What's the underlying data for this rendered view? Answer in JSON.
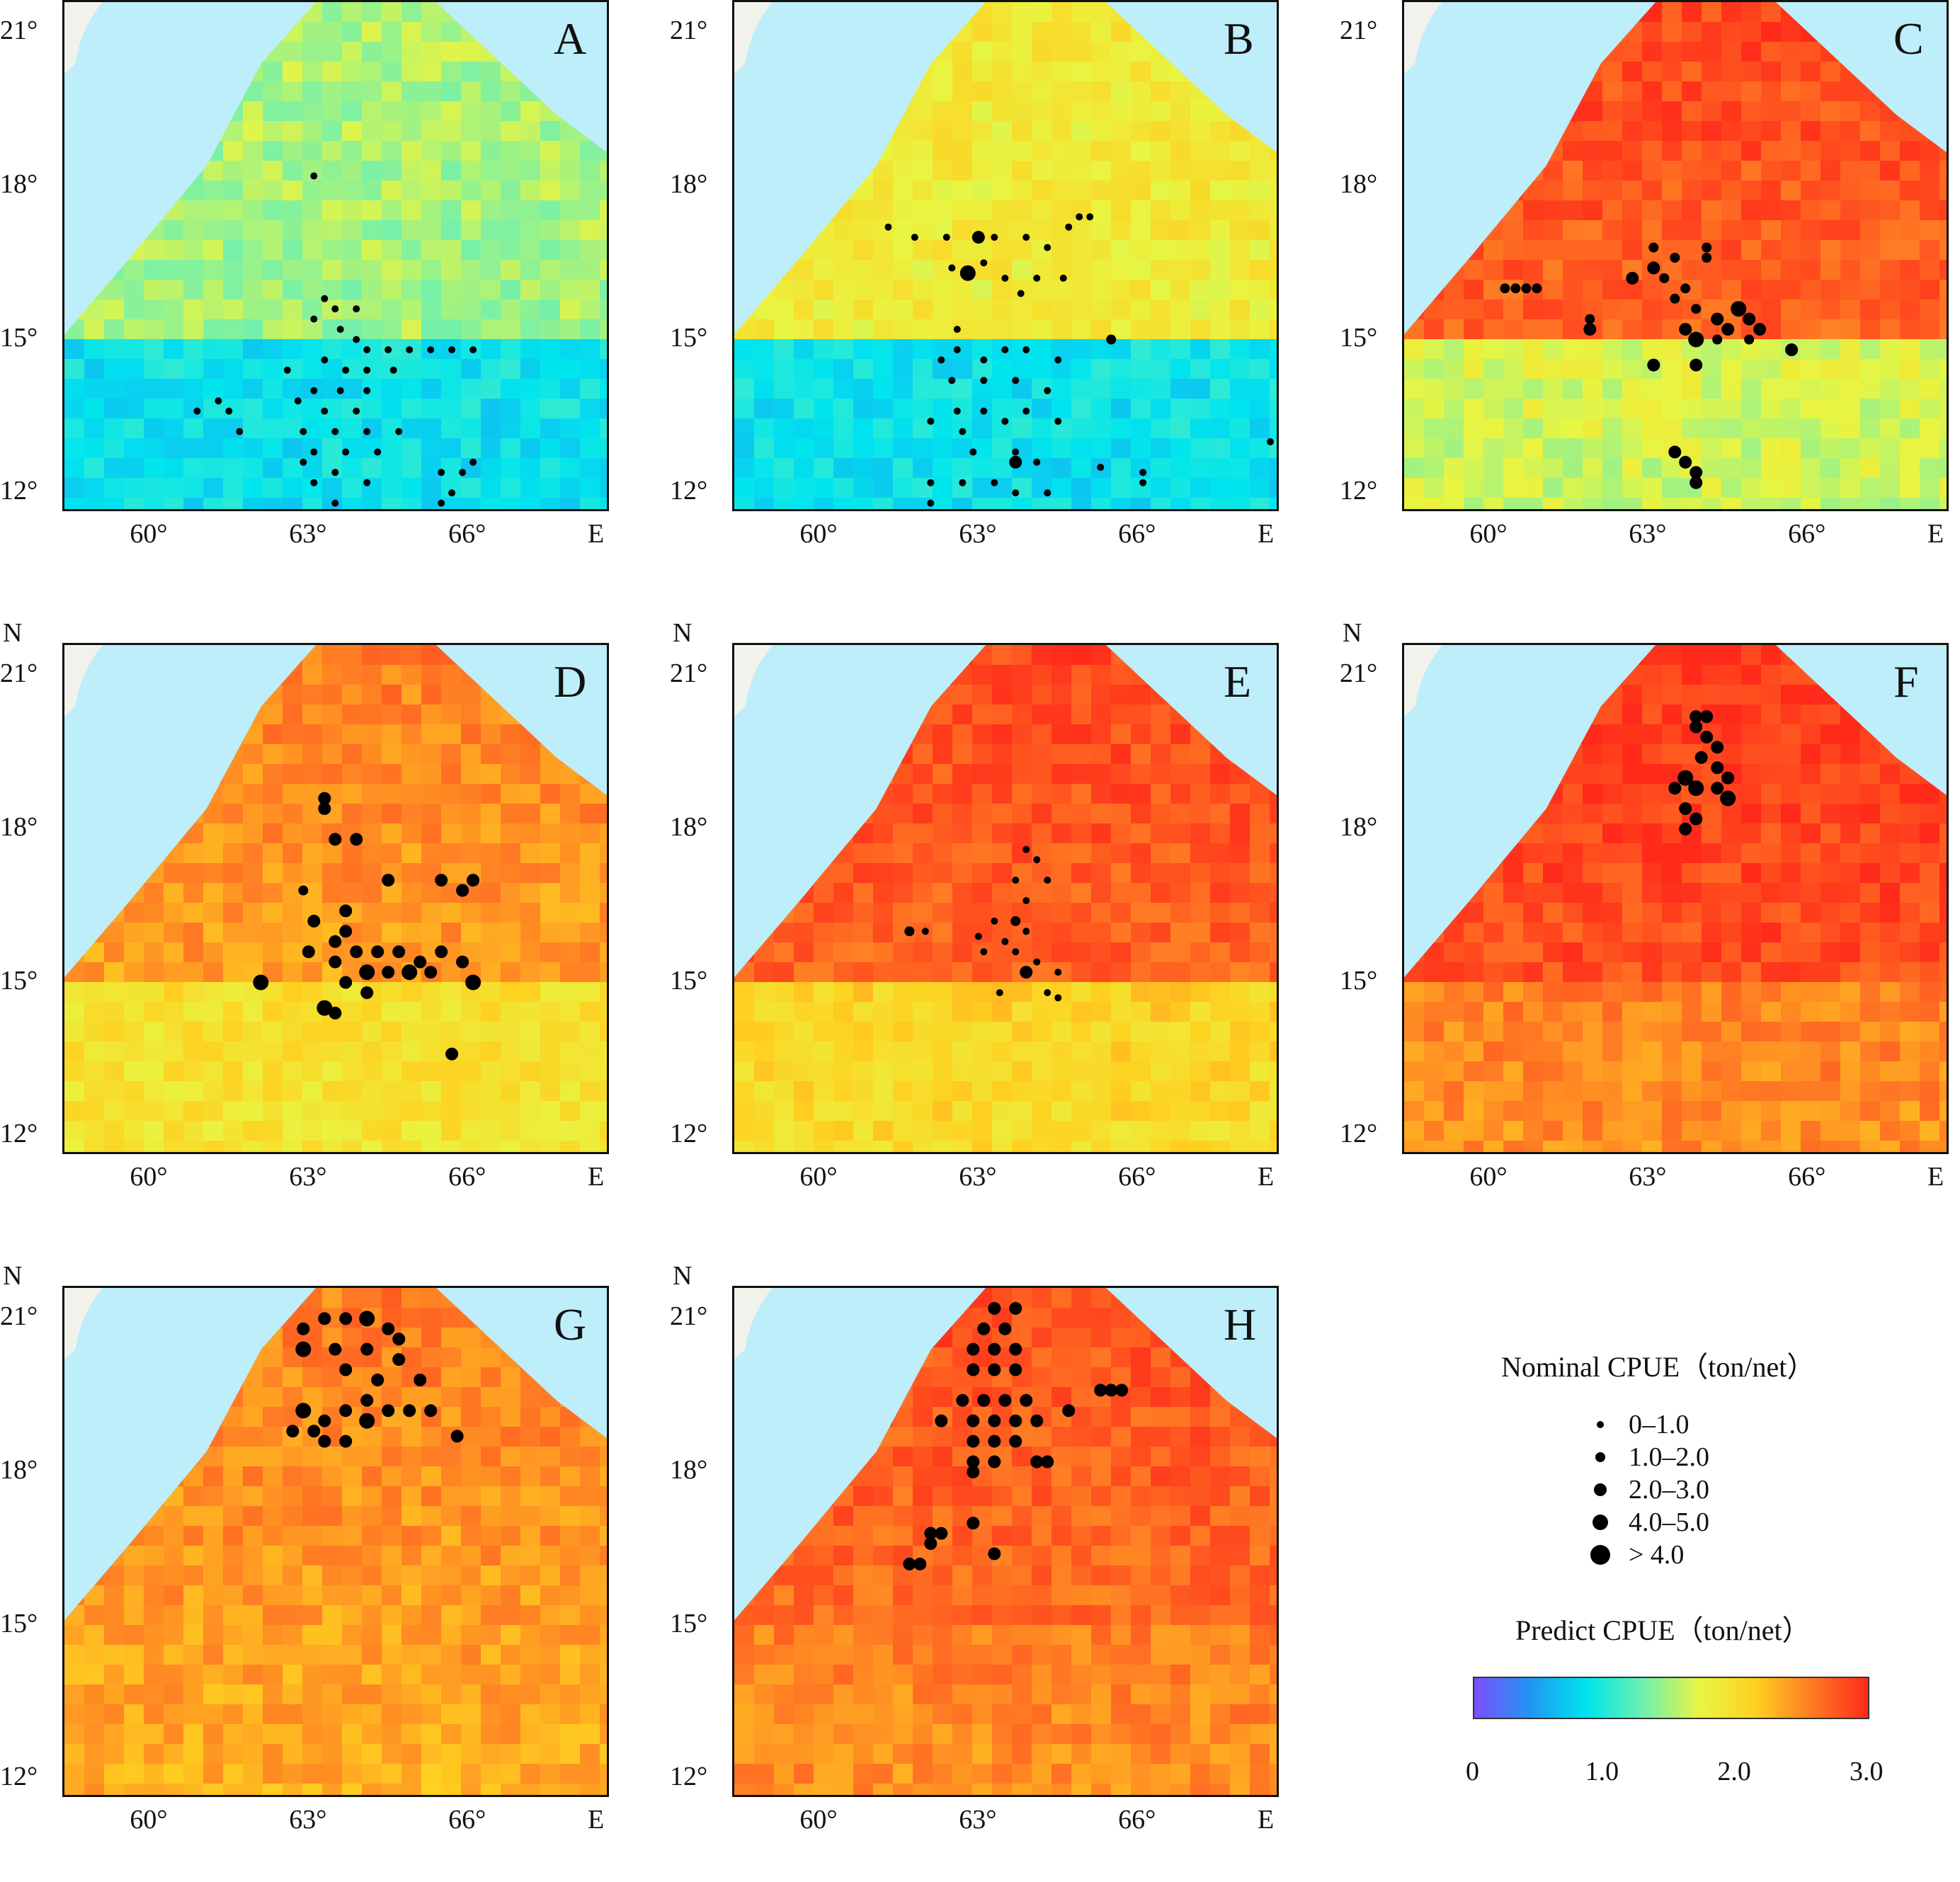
{
  "colors": {
    "sea": "#bdeefa",
    "land": "#f2f2ec",
    "scale": [
      "#7c4dff",
      "#2196f3",
      "#00e5ee",
      "#6ef0b0",
      "#e8f542",
      "#ffd020",
      "#ff7a24",
      "#ff2a1a"
    ]
  },
  "axes": {
    "lat_labels": [
      "21°",
      "18°",
      "15°",
      "12°"
    ],
    "lon_labels": [
      "60°",
      "63°",
      "66°"
    ],
    "north_label": "N",
    "east_label": "E",
    "lon_range": [
      58.3,
      68.6
    ],
    "lat_range": [
      11.6,
      21.6
    ]
  },
  "panels": [
    {
      "letter": "A",
      "level": 1.45,
      "south_level": 0.85,
      "dots": [
        [
          63.0,
          18.2,
          1
        ],
        [
          63.2,
          15.8,
          1
        ],
        [
          63.4,
          15.6,
          1
        ],
        [
          63.8,
          15.6,
          1
        ],
        [
          63.0,
          15.4,
          1
        ],
        [
          63.5,
          15.2,
          1
        ],
        [
          63.8,
          15.0,
          1
        ],
        [
          64.0,
          14.8,
          1
        ],
        [
          64.4,
          14.8,
          1
        ],
        [
          64.8,
          14.8,
          1
        ],
        [
          65.2,
          14.8,
          1
        ],
        [
          65.6,
          14.8,
          1
        ],
        [
          66.0,
          14.8,
          1
        ],
        [
          63.2,
          14.6,
          1
        ],
        [
          63.6,
          14.4,
          1
        ],
        [
          64.0,
          14.4,
          1
        ],
        [
          64.5,
          14.4,
          1
        ],
        [
          62.5,
          14.4,
          1
        ],
        [
          63.0,
          14.0,
          1
        ],
        [
          63.5,
          14.0,
          1
        ],
        [
          64.0,
          14.0,
          1
        ],
        [
          62.7,
          13.8,
          1
        ],
        [
          63.2,
          13.6,
          1
        ],
        [
          63.8,
          13.6,
          1
        ],
        [
          61.2,
          13.8,
          1
        ],
        [
          61.4,
          13.6,
          1
        ],
        [
          60.8,
          13.6,
          1
        ],
        [
          62.8,
          13.2,
          1
        ],
        [
          63.4,
          13.2,
          1
        ],
        [
          64.0,
          13.2,
          1
        ],
        [
          64.6,
          13.2,
          1
        ],
        [
          61.6,
          13.2,
          1
        ],
        [
          63.0,
          12.8,
          1
        ],
        [
          63.6,
          12.8,
          1
        ],
        [
          64.2,
          12.8,
          1
        ],
        [
          62.8,
          12.6,
          1
        ],
        [
          63.4,
          12.4,
          1
        ],
        [
          64.0,
          12.2,
          1
        ],
        [
          63.0,
          12.2,
          1
        ],
        [
          65.4,
          12.4,
          1
        ],
        [
          65.8,
          12.4,
          1
        ],
        [
          66.0,
          12.6,
          1
        ],
        [
          65.6,
          12.0,
          1
        ],
        [
          65.4,
          11.8,
          1
        ],
        [
          63.4,
          11.8,
          1
        ]
      ]
    },
    {
      "letter": "B",
      "level": 1.8,
      "south_level": 0.85,
      "dots": [
        [
          61.2,
          17.2,
          1
        ],
        [
          61.7,
          17.0,
          1
        ],
        [
          62.3,
          17.0,
          1
        ],
        [
          62.9,
          17.0,
          3
        ],
        [
          63.2,
          17.0,
          1
        ],
        [
          63.8,
          17.0,
          1
        ],
        [
          64.2,
          16.8,
          1
        ],
        [
          64.6,
          17.2,
          1
        ],
        [
          64.8,
          17.4,
          1
        ],
        [
          65.0,
          17.4,
          1
        ],
        [
          62.4,
          16.4,
          1
        ],
        [
          62.7,
          16.3,
          4
        ],
        [
          63.0,
          16.5,
          1
        ],
        [
          63.4,
          16.2,
          1
        ],
        [
          63.7,
          15.9,
          1
        ],
        [
          64.0,
          16.2,
          1
        ],
        [
          64.5,
          16.2,
          1
        ],
        [
          65.4,
          15.0,
          2
        ],
        [
          62.5,
          15.2,
          1
        ],
        [
          62.5,
          14.8,
          1
        ],
        [
          62.2,
          14.6,
          1
        ],
        [
          63.0,
          14.6,
          1
        ],
        [
          63.4,
          14.8,
          1
        ],
        [
          63.8,
          14.8,
          1
        ],
        [
          64.4,
          14.6,
          1
        ],
        [
          62.4,
          14.2,
          1
        ],
        [
          63.0,
          14.2,
          1
        ],
        [
          63.6,
          14.2,
          1
        ],
        [
          64.2,
          14.0,
          1
        ],
        [
          62.5,
          13.6,
          1
        ],
        [
          63.0,
          13.6,
          1
        ],
        [
          63.8,
          13.6,
          1
        ],
        [
          62.0,
          13.4,
          1
        ],
        [
          62.6,
          13.2,
          1
        ],
        [
          63.4,
          13.4,
          1
        ],
        [
          64.4,
          13.4,
          1
        ],
        [
          62.8,
          12.8,
          1
        ],
        [
          63.6,
          12.8,
          1
        ],
        [
          64.0,
          12.6,
          1
        ],
        [
          63.6,
          12.6,
          3
        ],
        [
          65.2,
          12.5,
          1
        ],
        [
          66.0,
          12.4,
          1
        ],
        [
          62.0,
          12.2,
          1
        ],
        [
          62.6,
          12.2,
          1
        ],
        [
          63.2,
          12.2,
          1
        ],
        [
          63.6,
          12.0,
          1
        ],
        [
          64.2,
          12.0,
          1
        ],
        [
          62.0,
          11.8,
          1
        ],
        [
          68.4,
          13.0,
          1
        ],
        [
          66.0,
          12.2,
          1
        ]
      ]
    },
    {
      "letter": "C",
      "level": 2.6,
      "south_level": 1.6,
      "dots": [
        [
          60.2,
          16.0,
          2
        ],
        [
          60.4,
          16.0,
          2
        ],
        [
          60.6,
          16.0,
          2
        ],
        [
          60.8,
          16.0,
          2
        ],
        [
          61.8,
          15.4,
          2
        ],
        [
          61.8,
          15.2,
          3
        ],
        [
          62.6,
          16.2,
          3
        ],
        [
          63.0,
          16.4,
          3
        ],
        [
          63.0,
          16.8,
          2
        ],
        [
          63.4,
          16.6,
          2
        ],
        [
          63.2,
          16.2,
          2
        ],
        [
          63.6,
          16.0,
          2
        ],
        [
          63.4,
          15.8,
          2
        ],
        [
          63.8,
          15.6,
          2
        ],
        [
          64.0,
          16.8,
          2
        ],
        [
          64.0,
          16.6,
          2
        ],
        [
          64.2,
          15.4,
          3
        ],
        [
          64.6,
          15.6,
          4
        ],
        [
          64.8,
          15.4,
          3
        ],
        [
          65.0,
          15.2,
          3
        ],
        [
          63.6,
          15.2,
          3
        ],
        [
          63.8,
          15.0,
          4
        ],
        [
          64.4,
          15.2,
          3
        ],
        [
          65.6,
          14.8,
          3
        ],
        [
          63.0,
          14.5,
          3
        ],
        [
          63.8,
          14.5,
          3
        ],
        [
          63.4,
          12.8,
          3
        ],
        [
          63.6,
          12.6,
          3
        ],
        [
          63.8,
          12.4,
          3
        ],
        [
          63.8,
          12.2,
          3
        ],
        [
          64.2,
          15.0,
          2
        ],
        [
          64.8,
          15.0,
          2
        ]
      ]
    },
    {
      "letter": "D",
      "level": 2.3,
      "south_level": 1.9,
      "dots": [
        [
          63.2,
          18.6,
          3
        ],
        [
          63.2,
          18.4,
          3
        ],
        [
          63.4,
          17.8,
          3
        ],
        [
          63.8,
          17.8,
          3
        ],
        [
          64.4,
          17.0,
          3
        ],
        [
          65.4,
          17.0,
          3
        ],
        [
          65.8,
          16.8,
          3
        ],
        [
          66.0,
          17.0,
          3
        ],
        [
          62.8,
          16.8,
          2
        ],
        [
          63.0,
          16.2,
          3
        ],
        [
          63.6,
          16.4,
          3
        ],
        [
          63.6,
          16.0,
          3
        ],
        [
          63.4,
          15.8,
          3
        ],
        [
          63.8,
          15.6,
          3
        ],
        [
          64.2,
          15.6,
          3
        ],
        [
          64.6,
          15.6,
          3
        ],
        [
          65.0,
          15.4,
          3
        ],
        [
          65.4,
          15.6,
          3
        ],
        [
          65.8,
          15.4,
          3
        ],
        [
          64.0,
          15.2,
          4
        ],
        [
          64.4,
          15.2,
          3
        ],
        [
          64.8,
          15.2,
          4
        ],
        [
          65.2,
          15.2,
          3
        ],
        [
          66.0,
          15.0,
          4
        ],
        [
          63.6,
          15.0,
          3
        ],
        [
          64.0,
          14.8,
          3
        ],
        [
          63.2,
          14.5,
          4
        ],
        [
          63.4,
          14.4,
          3
        ],
        [
          62.0,
          15.0,
          4
        ],
        [
          65.6,
          13.6,
          3
        ],
        [
          62.9,
          15.6,
          3
        ],
        [
          63.4,
          15.4,
          3
        ]
      ]
    },
    {
      "letter": "E",
      "level": 2.6,
      "south_level": 2.0,
      "dots": [
        [
          63.8,
          17.6,
          1
        ],
        [
          64.0,
          17.4,
          1
        ],
        [
          63.6,
          17.0,
          1
        ],
        [
          64.2,
          17.0,
          1
        ],
        [
          63.8,
          16.6,
          1
        ],
        [
          63.2,
          16.2,
          1
        ],
        [
          63.6,
          16.2,
          2
        ],
        [
          63.8,
          16.0,
          1
        ],
        [
          63.4,
          15.8,
          1
        ],
        [
          63.0,
          15.6,
          1
        ],
        [
          63.6,
          15.6,
          1
        ],
        [
          64.0,
          15.4,
          1
        ],
        [
          63.8,
          15.2,
          3
        ],
        [
          64.4,
          15.2,
          1
        ],
        [
          63.3,
          14.8,
          1
        ],
        [
          64.2,
          14.8,
          1
        ],
        [
          61.6,
          16.0,
          2
        ],
        [
          61.9,
          16.0,
          1
        ],
        [
          64.4,
          14.7,
          1
        ],
        [
          62.9,
          15.9,
          1
        ]
      ]
    },
    {
      "letter": "F",
      "level": 2.7,
      "south_level": 2.45,
      "dots": [
        [
          63.8,
          20.2,
          3
        ],
        [
          64.0,
          20.2,
          3
        ],
        [
          63.8,
          20.0,
          3
        ],
        [
          64.0,
          19.8,
          3
        ],
        [
          64.2,
          19.6,
          3
        ],
        [
          63.9,
          19.4,
          3
        ],
        [
          63.6,
          19.0,
          4
        ],
        [
          63.8,
          18.8,
          4
        ],
        [
          64.2,
          18.8,
          3
        ],
        [
          64.4,
          18.6,
          4
        ],
        [
          63.6,
          18.4,
          3
        ],
        [
          63.8,
          18.2,
          3
        ],
        [
          63.6,
          18.0,
          3
        ],
        [
          64.2,
          19.2,
          3
        ],
        [
          64.4,
          19.0,
          3
        ],
        [
          63.4,
          18.8,
          3
        ]
      ]
    },
    {
      "letter": "G",
      "level": 2.3,
      "south_level": 2.3,
      "dots": [
        [
          62.8,
          20.8,
          3
        ],
        [
          63.2,
          21.0,
          3
        ],
        [
          63.6,
          21.0,
          3
        ],
        [
          64.0,
          21.0,
          4
        ],
        [
          64.4,
          20.8,
          3
        ],
        [
          64.6,
          20.6,
          3
        ],
        [
          62.8,
          20.4,
          4
        ],
        [
          63.4,
          20.4,
          3
        ],
        [
          64.0,
          20.4,
          3
        ],
        [
          64.6,
          20.2,
          3
        ],
        [
          63.6,
          20.0,
          3
        ],
        [
          64.2,
          19.8,
          3
        ],
        [
          65.0,
          19.8,
          3
        ],
        [
          62.8,
          19.2,
          4
        ],
        [
          63.2,
          19.0,
          3
        ],
        [
          63.6,
          19.2,
          3
        ],
        [
          64.0,
          19.0,
          4
        ],
        [
          64.4,
          19.2,
          3
        ],
        [
          64.8,
          19.2,
          3
        ],
        [
          65.2,
          19.2,
          3
        ],
        [
          62.6,
          18.8,
          3
        ],
        [
          63.2,
          18.6,
          3
        ],
        [
          63.6,
          18.6,
          3
        ],
        [
          64.0,
          19.4,
          3
        ],
        [
          65.7,
          18.7,
          3
        ],
        [
          63.0,
          18.8,
          3
        ]
      ]
    },
    {
      "letter": "H",
      "level": 2.55,
      "south_level": 2.45,
      "dots": [
        [
          63.2,
          21.2,
          3
        ],
        [
          63.6,
          21.2,
          3
        ],
        [
          63.0,
          20.8,
          3
        ],
        [
          63.4,
          20.8,
          3
        ],
        [
          62.8,
          20.4,
          3
        ],
        [
          63.2,
          20.4,
          3
        ],
        [
          63.6,
          20.4,
          3
        ],
        [
          62.8,
          20.0,
          3
        ],
        [
          63.2,
          20.0,
          3
        ],
        [
          63.6,
          20.0,
          3
        ],
        [
          62.6,
          19.4,
          3
        ],
        [
          63.0,
          19.4,
          3
        ],
        [
          63.4,
          19.4,
          3
        ],
        [
          63.8,
          19.4,
          3
        ],
        [
          62.8,
          19.0,
          3
        ],
        [
          63.2,
          19.0,
          3
        ],
        [
          63.6,
          19.0,
          3
        ],
        [
          64.0,
          19.0,
          3
        ],
        [
          62.8,
          18.6,
          3
        ],
        [
          63.2,
          18.6,
          3
        ],
        [
          63.6,
          18.6,
          3
        ],
        [
          62.8,
          18.2,
          3
        ],
        [
          63.2,
          18.2,
          3
        ],
        [
          64.0,
          18.2,
          3
        ],
        [
          64.2,
          18.2,
          3
        ],
        [
          62.2,
          19.0,
          3
        ],
        [
          64.6,
          19.2,
          3
        ],
        [
          65.2,
          19.6,
          3
        ],
        [
          65.4,
          19.6,
          3
        ],
        [
          65.6,
          19.6,
          3
        ],
        [
          62.0,
          16.8,
          3
        ],
        [
          62.2,
          16.8,
          3
        ],
        [
          62.0,
          16.6,
          3
        ],
        [
          61.8,
          16.2,
          3
        ],
        [
          61.6,
          16.2,
          3
        ],
        [
          62.8,
          17.0,
          3
        ],
        [
          63.2,
          16.4,
          3
        ],
        [
          62.8,
          18.0,
          3
        ]
      ]
    }
  ],
  "legend": {
    "size_title": "Nominal CPUE（ton/net）",
    "size_classes": [
      {
        "label": "0–1.0",
        "rank": 1
      },
      {
        "label": "1.0–2.0",
        "rank": 2
      },
      {
        "label": "2.0–3.0",
        "rank": 3
      },
      {
        "label": "4.0–5.0",
        "rank": 4
      },
      {
        "label": "> 4.0",
        "rank": 5
      }
    ],
    "color_title": "Predict CPUE（ton/net）",
    "color_ticks": [
      "0",
      "1.0",
      "2.0",
      "3.0"
    ],
    "color_range": [
      0,
      3
    ]
  }
}
